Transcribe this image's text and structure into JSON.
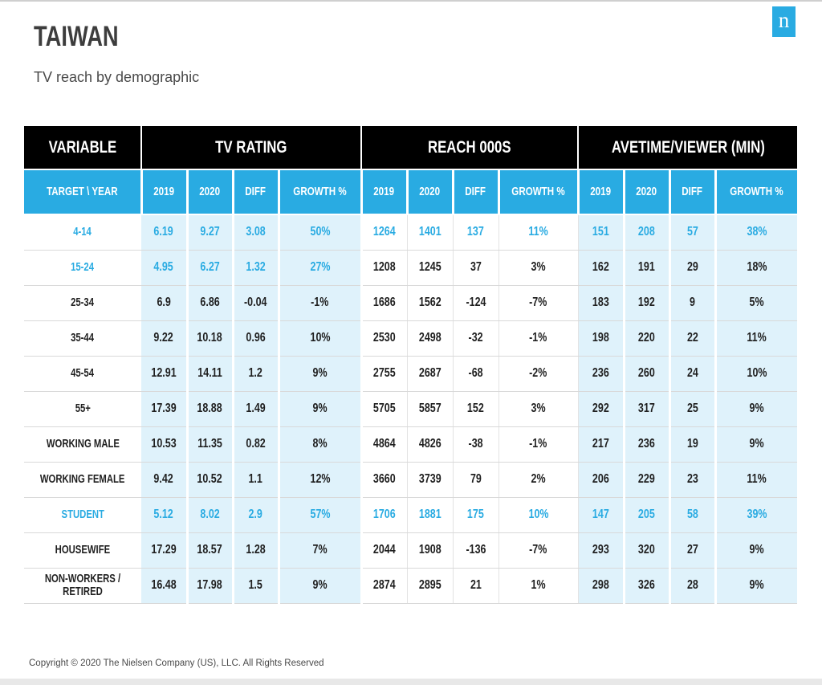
{
  "page": {
    "title": "TAIWAN",
    "subtitle": "TV reach by demographic",
    "footer": "Copyright © 2020 The Nielsen Company (US), LLC. All Rights Reserved",
    "logo_letter": "n"
  },
  "colors": {
    "accent_cyan": "#29ABE2",
    "light_blue_cell": "#DFF2FB",
    "header_black": "#000000",
    "highlight_text": "#29ABE2"
  },
  "chart_data": {
    "type": "table",
    "title": "TAIWAN",
    "subtitle": "TV reach by demographic",
    "column_groups": [
      "VARIABLE",
      "TV RATING",
      "REACH 000S",
      "AVETIME/VIEWER (MIN)"
    ],
    "row_header": "TARGET \\ YEAR",
    "sub_columns": [
      "2019",
      "2020",
      "DIFF",
      "GROWTH %"
    ],
    "rows": [
      {
        "label": "4-14",
        "highlight": "full",
        "values": [
          "6.19",
          "9.27",
          "3.08",
          "50%",
          "1264",
          "1401",
          "137",
          "11%",
          "151",
          "208",
          "57",
          "38%"
        ]
      },
      {
        "label": "15-24",
        "highlight": "tv-only",
        "values": [
          "4.95",
          "6.27",
          "1.32",
          "27%",
          "1208",
          "1245",
          "37",
          "3%",
          "162",
          "191",
          "29",
          "18%"
        ]
      },
      {
        "label": "25-34",
        "highlight": "none",
        "values": [
          "6.9",
          "6.86",
          "-0.04",
          "-1%",
          "1686",
          "1562",
          "-124",
          "-7%",
          "183",
          "192",
          "9",
          "5%"
        ]
      },
      {
        "label": "35-44",
        "highlight": "none",
        "values": [
          "9.22",
          "10.18",
          "0.96",
          "10%",
          "2530",
          "2498",
          "-32",
          "-1%",
          "198",
          "220",
          "22",
          "11%"
        ]
      },
      {
        "label": "45-54",
        "highlight": "none",
        "values": [
          "12.91",
          "14.11",
          "1.2",
          "9%",
          "2755",
          "2687",
          "-68",
          "-2%",
          "236",
          "260",
          "24",
          "10%"
        ]
      },
      {
        "label": "55+",
        "highlight": "none",
        "values": [
          "17.39",
          "18.88",
          "1.49",
          "9%",
          "5705",
          "5857",
          "152",
          "3%",
          "292",
          "317",
          "25",
          "9%"
        ]
      },
      {
        "label": "WORKING MALE",
        "highlight": "none",
        "values": [
          "10.53",
          "11.35",
          "0.82",
          "8%",
          "4864",
          "4826",
          "-38",
          "-1%",
          "217",
          "236",
          "19",
          "9%"
        ]
      },
      {
        "label": "WORKING FEMALE",
        "highlight": "none",
        "values": [
          "9.42",
          "10.52",
          "1.1",
          "12%",
          "3660",
          "3739",
          "79",
          "2%",
          "206",
          "229",
          "23",
          "11%"
        ]
      },
      {
        "label": "STUDENT",
        "highlight": "full",
        "values": [
          "5.12",
          "8.02",
          "2.9",
          "57%",
          "1706",
          "1881",
          "175",
          "10%",
          "147",
          "205",
          "58",
          "39%"
        ]
      },
      {
        "label": "HOUSEWIFE",
        "highlight": "none",
        "values": [
          "17.29",
          "18.57",
          "1.28",
          "7%",
          "2044",
          "1908",
          "-136",
          "-7%",
          "293",
          "320",
          "27",
          "9%"
        ]
      },
      {
        "label": "NON-WORKERS / RETIRED",
        "highlight": "none",
        "values": [
          "16.48",
          "17.98",
          "1.5",
          "9%",
          "2874",
          "2895",
          "21",
          "1%",
          "298",
          "326",
          "28",
          "9%"
        ]
      }
    ]
  }
}
